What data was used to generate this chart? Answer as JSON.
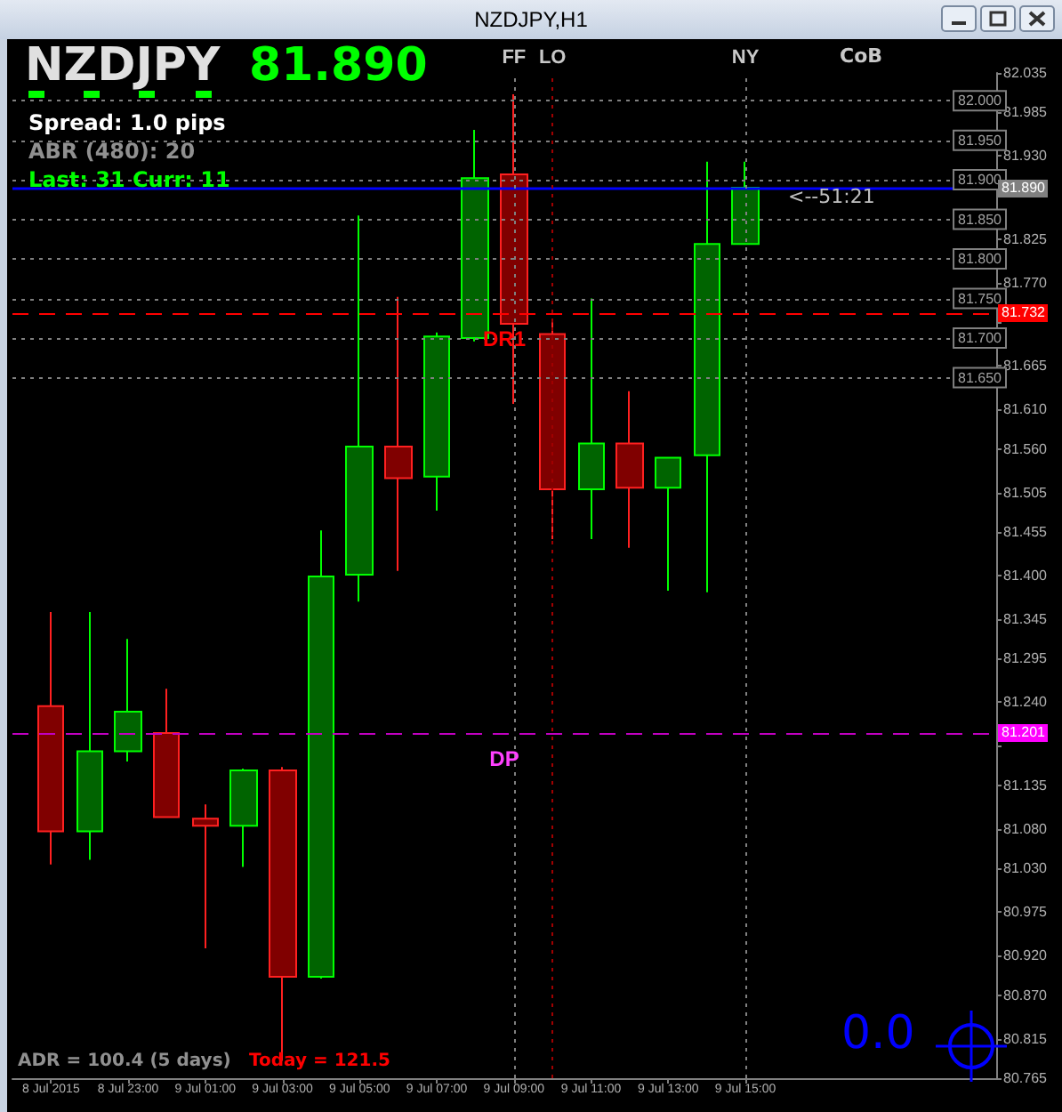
{
  "chart_data": {
    "type": "candlestick",
    "title": "NZDJPY,H1",
    "x": [
      "2015-07-08T21:00",
      "2015-07-08T22:00",
      "2015-07-08T23:00",
      "2015-07-09T00:00",
      "2015-07-09T01:00",
      "2015-07-09T02:00",
      "2015-07-09T03:00",
      "2015-07-09T04:00",
      "2015-07-09T05:00",
      "2015-07-09T06:00",
      "2015-07-09T07:00",
      "2015-07-09T08:00",
      "2015-07-09T09:00",
      "2015-07-09T10:00",
      "2015-07-09T11:00",
      "2015-07-09T12:00",
      "2015-07-09T13:00",
      "2015-07-09T14:00",
      "2015-07-09T15:00"
    ],
    "ohlc": [
      [
        81.235,
        81.354,
        81.035,
        81.077
      ],
      [
        81.077,
        81.354,
        81.041,
        81.178
      ],
      [
        81.178,
        81.32,
        81.165,
        81.228
      ],
      [
        81.201,
        81.257,
        81.095,
        81.095
      ],
      [
        81.093,
        81.111,
        80.929,
        81.084
      ],
      [
        81.084,
        81.156,
        81.032,
        81.154
      ],
      [
        81.154,
        81.158,
        80.787,
        80.893
      ],
      [
        80.893,
        81.457,
        80.891,
        81.399
      ],
      [
        81.401,
        81.855,
        81.367,
        81.563
      ],
      [
        81.563,
        81.752,
        81.406,
        81.523
      ],
      [
        81.525,
        81.707,
        81.482,
        81.702
      ],
      [
        81.7,
        81.963,
        81.696,
        81.902
      ],
      [
        81.907,
        82.008,
        81.617,
        81.718
      ],
      [
        81.705,
        81.72,
        81.446,
        81.509
      ],
      [
        81.509,
        81.75,
        81.446,
        81.567
      ],
      [
        81.567,
        81.633,
        81.435,
        81.511
      ],
      [
        81.511,
        81.549,
        81.381,
        81.549
      ],
      [
        81.552,
        81.923,
        81.379,
        81.819
      ],
      [
        81.819,
        81.923,
        81.819,
        81.89
      ]
    ],
    "colors": [
      "#800000",
      "#006400",
      "#006400",
      "#800000",
      "#800000",
      "#006400",
      "#800000",
      "#006400",
      "#006400",
      "#800000",
      "#006400",
      "#006400",
      "#800000",
      "#800000",
      "#006400",
      "#800000",
      "#006400",
      "#006400",
      "#006400"
    ],
    "xlim": [
      "2015-07-08T20:00",
      "2015-07-09T21:30"
    ],
    "xticks": [
      {
        "value": "2015-07-08T21:00",
        "label": "8 Jul 2015"
      },
      {
        "value": "2015-07-08T23:00",
        "label": "8 Jul 23:00"
      },
      {
        "value": "2015-07-09T01:00",
        "label": "9 Jul 01:00"
      },
      {
        "value": "2015-07-09T03:00",
        "label": "9 Jul 03:00"
      },
      {
        "value": "2015-07-09T05:00",
        "label": "9 Jul 05:00"
      },
      {
        "value": "2015-07-09T07:00",
        "label": "9 Jul 07:00"
      },
      {
        "value": "2015-07-09T09:00",
        "label": "9 Jul 09:00"
      },
      {
        "value": "2015-07-09T11:00",
        "label": "9 Jul 11:00"
      },
      {
        "value": "2015-07-09T13:00",
        "label": "9 Jul 13:00"
      },
      {
        "value": "2015-07-09T15:00",
        "label": "9 Jul 15:00"
      }
    ],
    "ylim": [
      80.765,
      82.035
    ],
    "yticks": [
      {
        "value": 82.035,
        "label": "82.035"
      },
      {
        "value": 81.985,
        "label": "81.985"
      },
      {
        "value": 81.93,
        "label": "81.930"
      },
      {
        "value": 81.88,
        "label": null
      },
      {
        "value": 81.825,
        "label": "81.825"
      },
      {
        "value": 81.77,
        "label": "81.770"
      },
      {
        "value": 81.72,
        "label": null
      },
      {
        "value": 81.665,
        "label": "81.665"
      },
      {
        "value": 81.61,
        "label": "81.610"
      },
      {
        "value": 81.56,
        "label": "81.560"
      },
      {
        "value": 81.505,
        "label": "81.505"
      },
      {
        "value": 81.455,
        "label": "81.455"
      },
      {
        "value": 81.4,
        "label": "81.400"
      },
      {
        "value": 81.345,
        "label": "81.345"
      },
      {
        "value": 81.295,
        "label": "81.295"
      },
      {
        "value": 81.24,
        "label": "81.240"
      },
      {
        "value": 81.185,
        "label": null
      },
      {
        "value": 81.135,
        "label": "81.135"
      },
      {
        "value": 81.08,
        "label": "81.080"
      },
      {
        "value": 81.03,
        "label": "81.030"
      },
      {
        "value": 80.975,
        "label": "80.975"
      },
      {
        "value": 80.92,
        "label": "80.920"
      },
      {
        "value": 80.87,
        "label": "80.870"
      },
      {
        "value": 80.815,
        "label": "80.815"
      },
      {
        "value": 80.765,
        "label": "80.765"
      }
    ],
    "ref_lines": [
      {
        "axis": "y",
        "value": 82.0,
        "label": "82.000",
        "color": "#808080",
        "line_style": "dotted"
      },
      {
        "axis": "y",
        "value": 81.95,
        "label": "81.950",
        "color": "#808080",
        "line_style": "dotted"
      },
      {
        "axis": "y",
        "value": 81.9,
        "label": "81.900",
        "color": "#808080",
        "line_style": "dotted"
      },
      {
        "axis": "y",
        "value": 81.85,
        "label": "81.850",
        "color": "#808080",
        "line_style": "dotted"
      },
      {
        "axis": "y",
        "value": 81.8,
        "label": "81.800",
        "color": "#808080",
        "line_style": "dotted"
      },
      {
        "axis": "y",
        "value": 81.75,
        "label": "81.750",
        "color": "#808080",
        "line_style": "dotted"
      },
      {
        "axis": "y",
        "value": 81.7,
        "label": "81.700",
        "color": "#808080",
        "line_style": "dotted"
      },
      {
        "axis": "y",
        "value": 81.65,
        "label": "81.650",
        "color": "#808080",
        "line_style": "dotted"
      },
      {
        "axis": "y",
        "value": 81.89,
        "color": "#0000ff",
        "line_style": "solid"
      },
      {
        "axis": "y",
        "value": 81.732,
        "label": "DR1",
        "color": "#ff0000",
        "line_style": "dashed"
      },
      {
        "axis": "y",
        "value": 81.201,
        "label": "DP",
        "color": "#c000c0",
        "line_style": "dashed"
      },
      {
        "axis": "x",
        "value": "2015-07-09T09:00",
        "label": "FF",
        "color": "#808080",
        "line_style": "dotted"
      },
      {
        "axis": "x",
        "value": "2015-07-09T10:00",
        "label": "LO",
        "color": "#a00000",
        "line_style": "dotted"
      },
      {
        "axis": "x",
        "value": "2015-07-09T15:00",
        "label": "NY",
        "color": "#808080",
        "line_style": "dotted"
      }
    ],
    "annotations": [
      "NZDJPY",
      "81.890",
      "Spread: 1.0 pips",
      "ABR (480): 20",
      "Last: 31 Curr: 11",
      "<--51:21",
      "ADR = 100.4  (5 days)",
      "Today = 121.5",
      "0.0",
      "CoB",
      {
        "text": "81.890",
        "y": 81.89
      },
      {
        "text": "81.732",
        "y": 81.732
      },
      {
        "text": "81.201",
        "y": 81.201
      }
    ]
  }
}
